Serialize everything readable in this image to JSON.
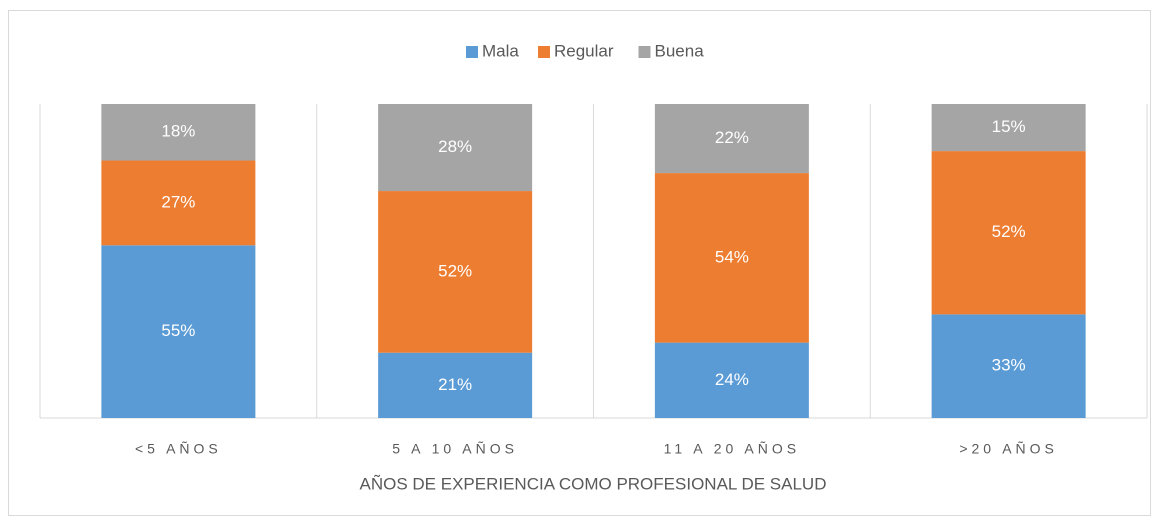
{
  "chart_data": {
    "type": "bar",
    "stacking": "percent",
    "x_label": "AÑOS DE EXPERIENCIA COMO PROFESIONAL DE SALUD",
    "categories": [
      "<5 AÑOS",
      "5 A 10 AÑOS",
      "11 A 20 AÑOS",
      ">20 AÑOS"
    ],
    "series": [
      {
        "name": "Mala",
        "color": "#5b9bd5",
        "values": [
          55,
          21,
          24,
          33
        ],
        "value_labels": [
          "55%",
          "21%",
          "24%",
          "33%"
        ]
      },
      {
        "name": "Regular",
        "color": "#ed7d31",
        "values": [
          27,
          52,
          54,
          52
        ],
        "value_labels": [
          "27%",
          "52%",
          "54%",
          "52%"
        ]
      },
      {
        "name": "Buena",
        "color": "#a5a5a5",
        "values": [
          18,
          28,
          22,
          15
        ],
        "value_labels": [
          "18%",
          "28%",
          "22%",
          "15%"
        ]
      }
    ],
    "legend": "top",
    "grid": true
  }
}
